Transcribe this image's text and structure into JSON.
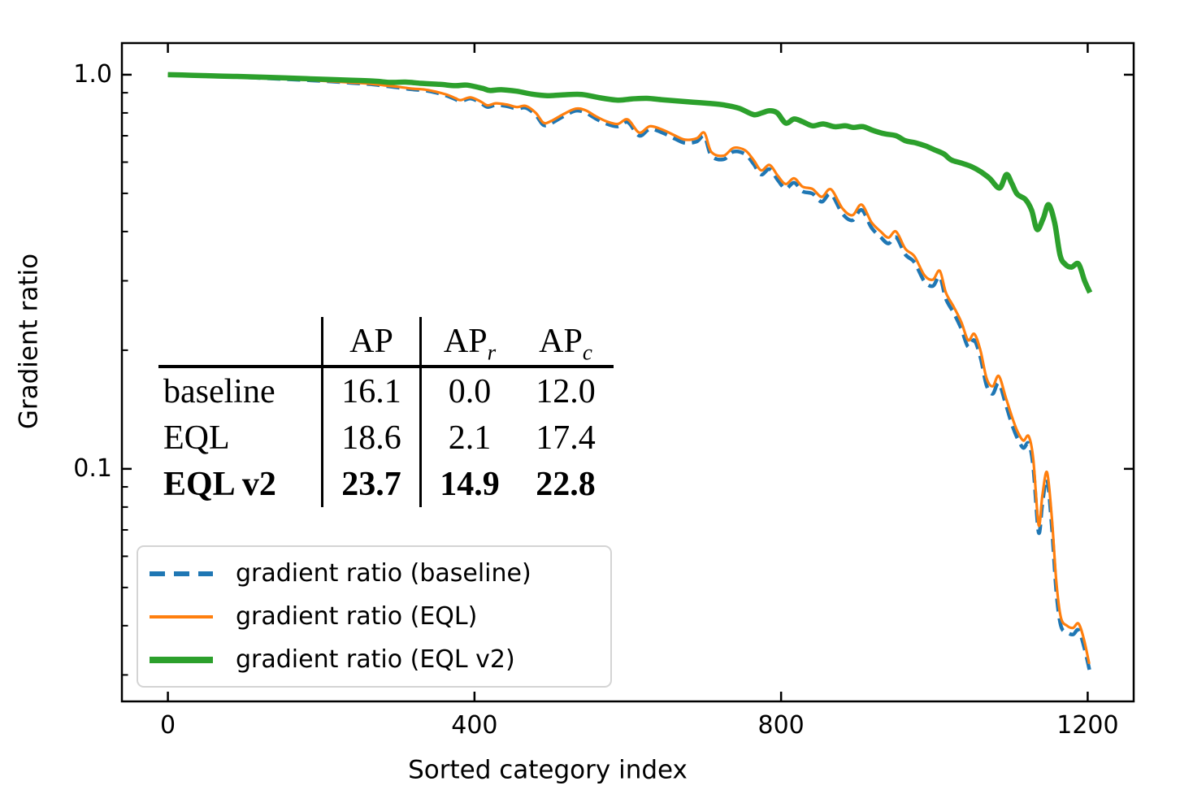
{
  "chart_data": {
    "type": "line",
    "xlabel": "Sorted category index",
    "ylabel": "Gradient ratio",
    "x_axis": {
      "scale": "linear",
      "range": [
        -60,
        1260
      ],
      "ticks": [
        0,
        400,
        800,
        1200
      ],
      "tick_labels": [
        "0",
        "400",
        "800",
        "1200"
      ]
    },
    "y_axis": {
      "scale": "log",
      "range": [
        0.0257,
        1.203
      ],
      "major_ticks": [
        1.0,
        0.1
      ],
      "major_tick_labels": [
        "1.0",
        "0.1"
      ],
      "minor_ticks": [
        0.9,
        0.8,
        0.7,
        0.6,
        0.5,
        0.4,
        0.3,
        0.2,
        0.09,
        0.08,
        0.07,
        0.06,
        0.05,
        0.04,
        0.03
      ]
    },
    "grid": false,
    "legend": {
      "position": "lower left"
    },
    "series": [
      {
        "name": "gradient ratio (baseline)",
        "color": "#1f77b4",
        "style": "dashed",
        "width": 4.5,
        "points": [
          [
            0,
            1.0
          ],
          [
            30,
            0.996
          ],
          [
            60,
            0.992
          ],
          [
            90,
            0.987
          ],
          [
            120,
            0.981
          ],
          [
            150,
            0.975
          ],
          [
            180,
            0.969
          ],
          [
            210,
            0.962
          ],
          [
            240,
            0.953
          ],
          [
            265,
            0.946
          ],
          [
            282,
            0.937
          ],
          [
            300,
            0.928
          ],
          [
            318,
            0.918
          ],
          [
            335,
            0.912
          ],
          [
            350,
            0.9
          ],
          [
            364,
            0.884
          ],
          [
            375,
            0.866
          ],
          [
            382,
            0.856
          ],
          [
            395,
            0.87
          ],
          [
            408,
            0.848
          ],
          [
            417,
            0.828
          ],
          [
            428,
            0.838
          ],
          [
            442,
            0.832
          ],
          [
            455,
            0.82
          ],
          [
            467,
            0.824
          ],
          [
            480,
            0.79
          ],
          [
            490,
            0.745
          ],
          [
            500,
            0.753
          ],
          [
            515,
            0.782
          ],
          [
            532,
            0.81
          ],
          [
            545,
            0.801
          ],
          [
            558,
            0.774
          ],
          [
            572,
            0.751
          ],
          [
            587,
            0.739
          ],
          [
            600,
            0.758
          ],
          [
            615,
            0.7
          ],
          [
            629,
            0.728
          ],
          [
            647,
            0.71
          ],
          [
            662,
            0.687
          ],
          [
            675,
            0.671
          ],
          [
            690,
            0.677
          ],
          [
            700,
            0.698
          ],
          [
            709,
            0.623
          ],
          [
            725,
            0.61
          ],
          [
            738,
            0.638
          ],
          [
            753,
            0.629
          ],
          [
            764,
            0.594
          ],
          [
            774,
            0.558
          ],
          [
            785,
            0.576
          ],
          [
            796,
            0.539
          ],
          [
            806,
            0.514
          ],
          [
            817,
            0.532
          ],
          [
            828,
            0.506
          ],
          [
            841,
            0.499
          ],
          [
            853,
            0.476
          ],
          [
            865,
            0.498
          ],
          [
            880,
            0.444
          ],
          [
            893,
            0.427
          ],
          [
            905,
            0.454
          ],
          [
            918,
            0.409
          ],
          [
            930,
            0.387
          ],
          [
            940,
            0.373
          ],
          [
            950,
            0.387
          ],
          [
            962,
            0.35
          ],
          [
            974,
            0.334
          ],
          [
            987,
            0.299
          ],
          [
            998,
            0.291
          ],
          [
            1007,
            0.307
          ],
          [
            1015,
            0.27
          ],
          [
            1025,
            0.249
          ],
          [
            1035,
            0.227
          ],
          [
            1044,
            0.204
          ],
          [
            1052,
            0.212
          ],
          [
            1060,
            0.192
          ],
          [
            1068,
            0.163
          ],
          [
            1076,
            0.155
          ],
          [
            1084,
            0.165
          ],
          [
            1093,
            0.146
          ],
          [
            1101,
            0.13
          ],
          [
            1108,
            0.12
          ],
          [
            1116,
            0.113
          ],
          [
            1123,
            0.116
          ],
          [
            1129,
            0.101
          ],
          [
            1136,
            0.069
          ],
          [
            1141,
            0.082
          ],
          [
            1147,
            0.094
          ],
          [
            1153,
            0.072
          ],
          [
            1159,
            0.049
          ],
          [
            1165,
            0.04
          ],
          [
            1173,
            0.0385
          ],
          [
            1181,
            0.038
          ],
          [
            1188,
            0.039
          ],
          [
            1195,
            0.0355
          ],
          [
            1203,
            0.0305
          ]
        ]
      },
      {
        "name": "gradient ratio (EQL)",
        "color": "#ff7f0e",
        "style": "solid",
        "width": 3.2,
        "points": [
          [
            0,
            1.0
          ],
          [
            30,
            0.996
          ],
          [
            60,
            0.992
          ],
          [
            90,
            0.987
          ],
          [
            120,
            0.982
          ],
          [
            150,
            0.976
          ],
          [
            180,
            0.97
          ],
          [
            210,
            0.963
          ],
          [
            240,
            0.955
          ],
          [
            265,
            0.948
          ],
          [
            282,
            0.94
          ],
          [
            300,
            0.932
          ],
          [
            318,
            0.922
          ],
          [
            335,
            0.917
          ],
          [
            350,
            0.905
          ],
          [
            364,
            0.89
          ],
          [
            375,
            0.872
          ],
          [
            382,
            0.862
          ],
          [
            395,
            0.876
          ],
          [
            408,
            0.855
          ],
          [
            417,
            0.836
          ],
          [
            428,
            0.846
          ],
          [
            442,
            0.84
          ],
          [
            455,
            0.828
          ],
          [
            467,
            0.833
          ],
          [
            480,
            0.8
          ],
          [
            490,
            0.755
          ],
          [
            500,
            0.763
          ],
          [
            515,
            0.792
          ],
          [
            532,
            0.82
          ],
          [
            545,
            0.812
          ],
          [
            558,
            0.785
          ],
          [
            572,
            0.762
          ],
          [
            587,
            0.75
          ],
          [
            600,
            0.77
          ],
          [
            615,
            0.713
          ],
          [
            629,
            0.74
          ],
          [
            647,
            0.723
          ],
          [
            662,
            0.7
          ],
          [
            675,
            0.684
          ],
          [
            690,
            0.69
          ],
          [
            700,
            0.712
          ],
          [
            709,
            0.637
          ],
          [
            725,
            0.623
          ],
          [
            738,
            0.652
          ],
          [
            753,
            0.643
          ],
          [
            764,
            0.608
          ],
          [
            774,
            0.572
          ],
          [
            785,
            0.59
          ],
          [
            796,
            0.553
          ],
          [
            806,
            0.528
          ],
          [
            817,
            0.546
          ],
          [
            828,
            0.52
          ],
          [
            841,
            0.513
          ],
          [
            853,
            0.49
          ],
          [
            865,
            0.512
          ],
          [
            880,
            0.458
          ],
          [
            893,
            0.44
          ],
          [
            905,
            0.468
          ],
          [
            918,
            0.422
          ],
          [
            930,
            0.4
          ],
          [
            940,
            0.386
          ],
          [
            950,
            0.4
          ],
          [
            962,
            0.362
          ],
          [
            974,
            0.346
          ],
          [
            987,
            0.31
          ],
          [
            998,
            0.302
          ],
          [
            1007,
            0.318
          ],
          [
            1015,
            0.28
          ],
          [
            1025,
            0.258
          ],
          [
            1035,
            0.236
          ],
          [
            1044,
            0.212
          ],
          [
            1052,
            0.22
          ],
          [
            1060,
            0.2
          ],
          [
            1068,
            0.17
          ],
          [
            1076,
            0.162
          ],
          [
            1084,
            0.172
          ],
          [
            1093,
            0.152
          ],
          [
            1101,
            0.136
          ],
          [
            1108,
            0.125
          ],
          [
            1116,
            0.118
          ],
          [
            1123,
            0.121
          ],
          [
            1129,
            0.106
          ],
          [
            1136,
            0.072
          ],
          [
            1141,
            0.086
          ],
          [
            1147,
            0.098
          ],
          [
            1153,
            0.076
          ],
          [
            1159,
            0.052
          ],
          [
            1165,
            0.042
          ],
          [
            1173,
            0.04
          ],
          [
            1181,
            0.0395
          ],
          [
            1188,
            0.0405
          ],
          [
            1195,
            0.037
          ],
          [
            1202,
            0.032
          ]
        ]
      },
      {
        "name": "gradient ratio (EQL v2)",
        "color": "#2ca02c",
        "style": "solid",
        "width": 6.5,
        "points": [
          [
            0,
            1.0
          ],
          [
            30,
            0.997
          ],
          [
            60,
            0.993
          ],
          [
            90,
            0.99
          ],
          [
            120,
            0.986
          ],
          [
            150,
            0.982
          ],
          [
            180,
            0.977
          ],
          [
            210,
            0.973
          ],
          [
            240,
            0.968
          ],
          [
            270,
            0.963
          ],
          [
            290,
            0.956
          ],
          [
            310,
            0.958
          ],
          [
            330,
            0.951
          ],
          [
            355,
            0.945
          ],
          [
            375,
            0.938
          ],
          [
            390,
            0.941
          ],
          [
            410,
            0.924
          ],
          [
            420,
            0.912
          ],
          [
            435,
            0.916
          ],
          [
            455,
            0.908
          ],
          [
            475,
            0.893
          ],
          [
            495,
            0.885
          ],
          [
            515,
            0.889
          ],
          [
            540,
            0.891
          ],
          [
            565,
            0.873
          ],
          [
            587,
            0.862
          ],
          [
            605,
            0.868
          ],
          [
            625,
            0.871
          ],
          [
            645,
            0.864
          ],
          [
            665,
            0.858
          ],
          [
            685,
            0.852
          ],
          [
            705,
            0.846
          ],
          [
            725,
            0.838
          ],
          [
            745,
            0.822
          ],
          [
            764,
            0.792
          ],
          [
            775,
            0.8
          ],
          [
            785,
            0.81
          ],
          [
            795,
            0.8
          ],
          [
            806,
            0.754
          ],
          [
            817,
            0.772
          ],
          [
            828,
            0.76
          ],
          [
            841,
            0.742
          ],
          [
            855,
            0.75
          ],
          [
            870,
            0.738
          ],
          [
            884,
            0.742
          ],
          [
            894,
            0.735
          ],
          [
            907,
            0.738
          ],
          [
            920,
            0.722
          ],
          [
            935,
            0.708
          ],
          [
            950,
            0.7
          ],
          [
            962,
            0.68
          ],
          [
            975,
            0.672
          ],
          [
            988,
            0.66
          ],
          [
            1000,
            0.645
          ],
          [
            1012,
            0.63
          ],
          [
            1022,
            0.608
          ],
          [
            1035,
            0.597
          ],
          [
            1048,
            0.585
          ],
          [
            1060,
            0.568
          ],
          [
            1072,
            0.546
          ],
          [
            1085,
            0.516
          ],
          [
            1094,
            0.558
          ],
          [
            1101,
            0.53
          ],
          [
            1108,
            0.498
          ],
          [
            1119,
            0.482
          ],
          [
            1127,
            0.452
          ],
          [
            1134,
            0.405
          ],
          [
            1142,
            0.432
          ],
          [
            1149,
            0.468
          ],
          [
            1157,
            0.42
          ],
          [
            1164,
            0.348
          ],
          [
            1171,
            0.33
          ],
          [
            1179,
            0.325
          ],
          [
            1188,
            0.331
          ],
          [
            1196,
            0.3
          ],
          [
            1203,
            0.28
          ]
        ]
      }
    ]
  },
  "table": {
    "columns": [
      {
        "text": "",
        "sub": ""
      },
      {
        "text": "AP",
        "sub": ""
      },
      {
        "text": "AP",
        "sub": "r"
      },
      {
        "text": "AP",
        "sub": "c"
      }
    ],
    "rows": [
      {
        "label": "baseline",
        "values": [
          "16.1",
          "0.0",
          "12.0"
        ],
        "bold": false
      },
      {
        "label": "EQL",
        "values": [
          "18.6",
          "2.1",
          "17.4"
        ],
        "bold": false
      },
      {
        "label": "EQL v2",
        "values": [
          "23.7",
          "14.9",
          "22.8"
        ],
        "bold": true
      }
    ]
  },
  "colors": {
    "axis": "#000000",
    "legend_border": "#d4d4d4",
    "background": "#ffffff"
  }
}
